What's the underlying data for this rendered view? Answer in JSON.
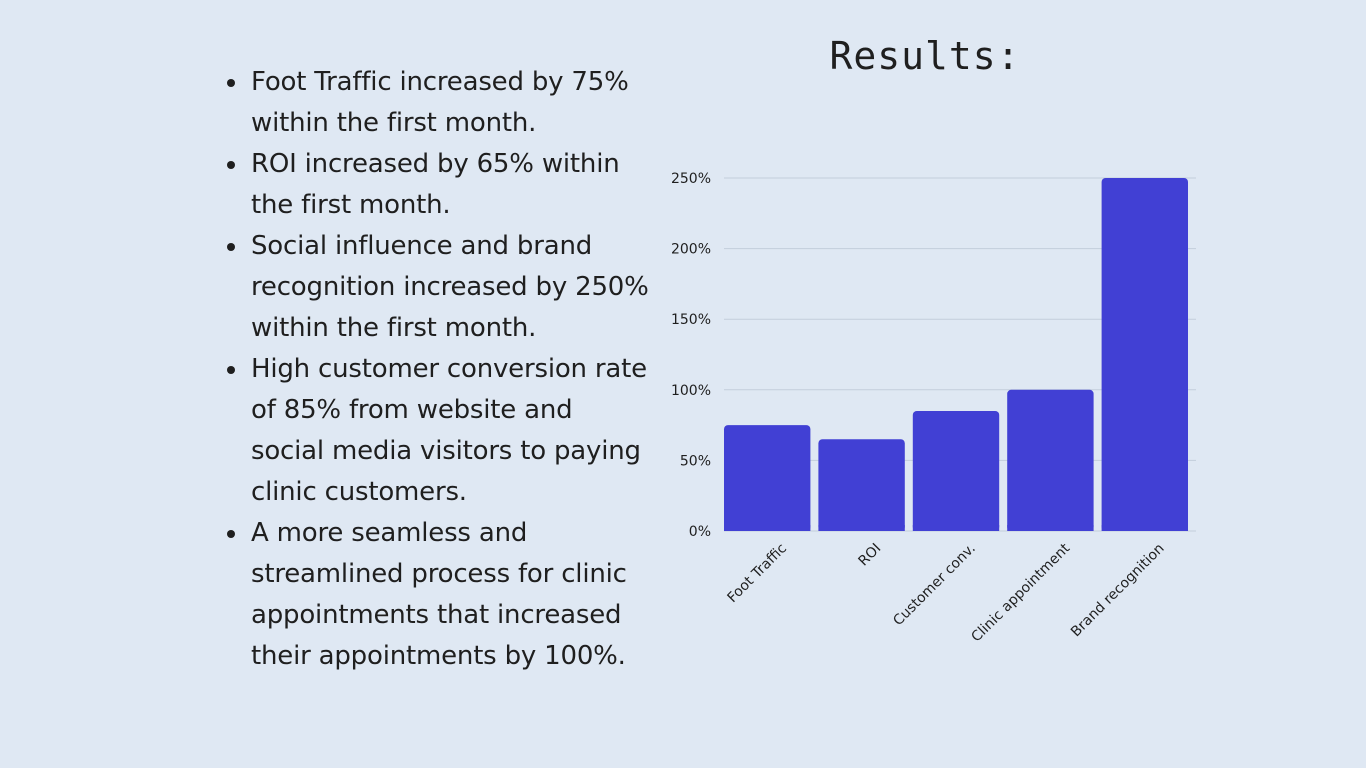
{
  "bullets": [
    "Foot Traffic increased by 75% within the first month.",
    "ROI increased by 65% within the first month.",
    "Social influence and brand recognition increased by 250% within the first month.",
    "High customer conversion rate of 85% from website and social media visitors to paying clinic customers.",
    "A more seamless and streamlined process for clinic appointments that increased their appointments by 100%."
  ],
  "colors": {
    "background": "#dfe8f3",
    "accent": "#4140d4",
    "text": "#1f1f1f",
    "grid": "#c3cedb"
  },
  "chart_data": {
    "type": "bar",
    "title": "Results:",
    "categories": [
      "Foot Traffic",
      "ROI",
      "Customer conv.",
      "Clinic appointment",
      "Brand recognition"
    ],
    "values": [
      75,
      65,
      85,
      100,
      250
    ],
    "y_ticks": [
      "0%",
      "50%",
      "100%",
      "150%",
      "200%",
      "250%"
    ],
    "ylim": [
      0,
      250
    ],
    "y_unit": "%",
    "xlabel": "",
    "ylabel": "",
    "grid": true,
    "legend": "none"
  }
}
